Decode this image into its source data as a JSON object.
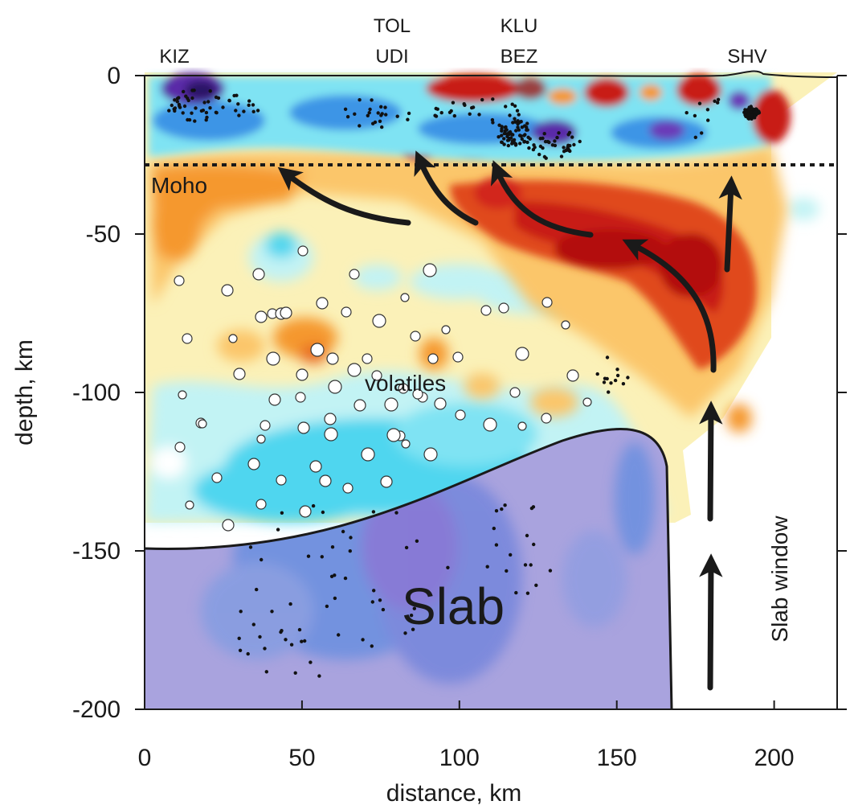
{
  "figure": {
    "x_axis": {
      "title": "distance, km",
      "ticks": [
        "0",
        "50",
        "100",
        "150",
        "200"
      ],
      "tick_values": [
        0,
        50,
        100,
        150,
        200
      ],
      "range": [
        0,
        220
      ]
    },
    "y_axis": {
      "title": "depth, km",
      "ticks": [
        "0",
        "-50",
        "-100",
        "-150",
        "-200"
      ],
      "tick_values": [
        0,
        -50,
        -100,
        -150,
        -200
      ],
      "range": [
        -200,
        0
      ]
    },
    "stations": [
      {
        "lines": [
          "KIZ"
        ],
        "distance": 10
      },
      {
        "lines": [
          "TOL",
          "UDI"
        ],
        "distance": 80
      },
      {
        "lines": [
          "KLU",
          "BEZ"
        ],
        "distance": 120
      },
      {
        "lines": [
          "SHV"
        ],
        "distance": 195
      }
    ],
    "annotations": {
      "moho": "Moho",
      "moho_depth": -28,
      "volatiles": "volatiles",
      "slab": "Slab",
      "slab_window": "Slab window"
    },
    "colors": {
      "slab_fill": "#a9a3de",
      "strong_red": "#b30f10",
      "red": "#dd3a1a",
      "orange": "#f5982e",
      "light_orange": "#fbc66a",
      "cream": "#fbf1b8",
      "pale_cyan": "#c2f3f4",
      "cyan": "#4fd6ef",
      "blue": "#3d95e6",
      "purple": "#5a2aa8",
      "arrow": "#1a1a1a"
    }
  }
}
